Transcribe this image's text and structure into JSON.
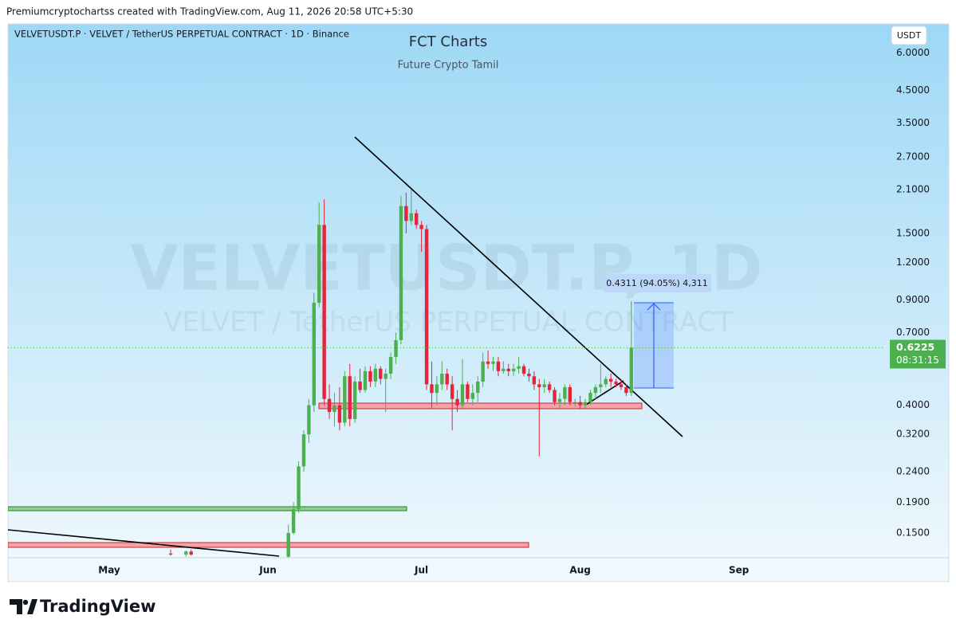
{
  "header": {
    "byline": "Premiumcryptochartss created with TradingView.com, Aug 11, 2026 20:58 UTC+5:30"
  },
  "footer": {
    "brand": "TradingView"
  },
  "chart_data": {
    "type": "candlestick",
    "symbol_info": "VELVETUSDT.P · VELVET / TetherUS PERPETUAL CONTRACT · 1D · Binance",
    "title": "FCT Charts",
    "subtitle": "Future Crypto Tamil",
    "watermark": "VELVETUSDT.P, 1D",
    "watermark_subtitle": "VELVET / TetherUS PERPETUAL CONTRACT",
    "currency": "USDT",
    "measurement": "0.4311 (94.05%) 4,311",
    "last_price": 0.6225,
    "countdown": "08:31:15",
    "up_color": "#4caf50",
    "down_color": "#e5233b",
    "log_scale": true,
    "grid": false,
    "ylim": [
      0.124,
      7.5
    ],
    "yticks": [
      {
        "value": 0.15,
        "label": "0.1500"
      },
      {
        "value": 0.19,
        "label": "0.1900"
      },
      {
        "value": 0.24,
        "label": "0.2400"
      },
      {
        "value": 0.32,
        "label": "0.3200"
      },
      {
        "value": 0.4,
        "label": "0.4000"
      },
      {
        "value": 0.7,
        "label": "0.7000"
      },
      {
        "value": 0.9,
        "label": "0.9000"
      },
      {
        "value": 1.2,
        "label": "1.2000"
      },
      {
        "value": 1.5,
        "label": "1.5000"
      },
      {
        "value": 2.1,
        "label": "2.1000"
      },
      {
        "value": 2.7,
        "label": "2.7000"
      },
      {
        "value": 3.5,
        "label": "3.5000"
      },
      {
        "value": 4.5,
        "label": "4.5000"
      },
      {
        "value": 6,
        "label": "6.0000"
      }
    ],
    "categories": [
      "May",
      null,
      null,
      null,
      null,
      null,
      null,
      null,
      null,
      null,
      null,
      null,
      null,
      null,
      null,
      null,
      null,
      null,
      null,
      null,
      null,
      null,
      null,
      null,
      null,
      null,
      null,
      null,
      null,
      null,
      null,
      "Jun",
      null,
      null,
      null,
      null,
      null,
      null,
      null,
      null,
      null,
      null,
      null,
      null,
      null,
      null,
      null,
      null,
      null,
      null,
      null,
      null,
      null,
      null,
      null,
      null,
      null,
      null,
      null,
      null,
      null,
      "Jul",
      null,
      null,
      null,
      null,
      null,
      null,
      null,
      null,
      null,
      null,
      null,
      null,
      null,
      null,
      null,
      null,
      null,
      null,
      null,
      null,
      null,
      null,
      null,
      null,
      null,
      null,
      null,
      null,
      null,
      null,
      "Aug",
      null,
      null,
      null,
      null,
      null,
      null,
      null,
      null,
      null,
      null,
      null,
      null,
      null,
      null,
      null,
      null,
      null,
      null,
      null,
      null,
      null,
      null,
      null,
      null,
      null,
      null,
      null,
      null,
      null,
      null,
      "Sep"
    ],
    "open": [
      null,
      null,
      null,
      null,
      null,
      null,
      null,
      null,
      null,
      null,
      null,
      null,
      0.128,
      null,
      null,
      0.127,
      0.13,
      null,
      null,
      null,
      null,
      null,
      null,
      null,
      null,
      null,
      null,
      null,
      null,
      null,
      null,
      null,
      null,
      null,
      null,
      0.125,
      0.15,
      0.18,
      0.25,
      0.32,
      0.4,
      0.88,
      1.6,
      0.42,
      0.38,
      0.4,
      0.35,
      0.5,
      0.36,
      0.48,
      0.45,
      0.52,
      0.48,
      0.53,
      0.49,
      0.51,
      0.58,
      0.66,
      1.85,
      1.65,
      1.75,
      1.6,
      1.55,
      0.47,
      0.44,
      0.47,
      0.51,
      0.47,
      0.42,
      0.4,
      0.47,
      0.42,
      0.44,
      0.48,
      0.56,
      0.55,
      0.56,
      0.52,
      0.53,
      0.52,
      0.53,
      0.54,
      0.51,
      0.5,
      0.47,
      0.46,
      0.47,
      0.45,
      0.41,
      0.42,
      0.46,
      0.41,
      0.41,
      0.4,
      0.41,
      0.44,
      0.46,
      0.47,
      0.49,
      0.48,
      0.47,
      0.46,
      0.44,
      null,
      null,
      null,
      null,
      null,
      null,
      null,
      null,
      null,
      null,
      null,
      null,
      null,
      null,
      null,
      null,
      null,
      null,
      null,
      null,
      null
    ],
    "high": [
      null,
      null,
      null,
      null,
      null,
      null,
      null,
      null,
      null,
      null,
      null,
      null,
      0.132,
      null,
      null,
      0.131,
      0.132,
      null,
      null,
      null,
      null,
      null,
      null,
      null,
      null,
      null,
      null,
      null,
      null,
      null,
      null,
      null,
      null,
      null,
      null,
      0.16,
      0.19,
      0.26,
      0.33,
      0.42,
      0.95,
      1.9,
      1.95,
      0.47,
      0.44,
      0.46,
      0.52,
      0.55,
      0.5,
      0.53,
      0.54,
      0.54,
      0.55,
      0.54,
      0.53,
      0.6,
      0.7,
      2.0,
      2.05,
      2.1,
      1.8,
      1.65,
      1.6,
      0.56,
      0.5,
      0.56,
      0.53,
      0.5,
      0.45,
      0.57,
      0.48,
      0.47,
      0.5,
      0.6,
      0.61,
      0.58,
      0.58,
      0.56,
      0.55,
      0.55,
      0.58,
      0.55,
      0.53,
      0.52,
      0.49,
      0.49,
      0.48,
      0.46,
      0.44,
      0.47,
      0.47,
      0.42,
      0.43,
      0.42,
      0.45,
      0.47,
      0.55,
      0.5,
      0.51,
      0.49,
      0.49,
      0.47,
      0.89,
      null,
      null,
      null,
      null,
      null,
      null,
      null,
      null,
      null,
      null,
      null,
      null,
      null,
      null,
      null,
      null,
      null,
      null,
      null,
      null,
      null
    ],
    "low": [
      null,
      null,
      null,
      null,
      null,
      null,
      null,
      null,
      null,
      null,
      null,
      null,
      0.126,
      null,
      null,
      0.125,
      0.126,
      null,
      null,
      null,
      null,
      null,
      null,
      null,
      null,
      null,
      null,
      null,
      null,
      null,
      null,
      null,
      null,
      null,
      null,
      0.123,
      0.148,
      0.175,
      0.24,
      0.3,
      0.38,
      0.85,
      0.4,
      0.36,
      0.34,
      0.33,
      0.34,
      0.34,
      0.35,
      0.44,
      0.44,
      0.46,
      0.46,
      0.47,
      0.38,
      0.49,
      0.55,
      0.64,
      1.5,
      1.6,
      1.55,
      1.3,
      0.45,
      0.39,
      0.4,
      0.45,
      0.45,
      0.33,
      0.38,
      0.39,
      0.41,
      0.4,
      0.41,
      0.46,
      0.53,
      0.52,
      0.5,
      0.51,
      0.5,
      0.5,
      0.51,
      0.5,
      0.48,
      0.45,
      0.27,
      0.44,
      0.44,
      0.4,
      0.39,
      0.4,
      0.4,
      0.395,
      0.39,
      0.39,
      0.4,
      0.42,
      0.44,
      0.46,
      0.46,
      0.46,
      0.45,
      0.43,
      0.43,
      null,
      null,
      null,
      null,
      null,
      null,
      null,
      null,
      null,
      null,
      null,
      null,
      null,
      null,
      null,
      null,
      null,
      null,
      null,
      null,
      null
    ],
    "close": [
      null,
      null,
      null,
      null,
      null,
      null,
      null,
      null,
      null,
      null,
      null,
      null,
      0.127,
      null,
      null,
      0.13,
      0.127,
      null,
      null,
      null,
      null,
      null,
      null,
      null,
      null,
      null,
      null,
      null,
      null,
      null,
      null,
      null,
      null,
      null,
      null,
      0.15,
      0.18,
      0.25,
      0.32,
      0.4,
      0.88,
      1.6,
      0.42,
      0.38,
      0.4,
      0.35,
      0.5,
      0.36,
      0.48,
      0.45,
      0.52,
      0.48,
      0.53,
      0.49,
      0.51,
      0.58,
      0.66,
      1.85,
      1.65,
      1.75,
      1.6,
      1.55,
      0.47,
      0.44,
      0.47,
      0.51,
      0.47,
      0.42,
      0.4,
      0.47,
      0.42,
      0.44,
      0.48,
      0.56,
      0.55,
      0.56,
      0.52,
      0.53,
      0.52,
      0.53,
      0.54,
      0.51,
      0.5,
      0.47,
      0.46,
      0.47,
      0.45,
      0.41,
      0.42,
      0.46,
      0.41,
      0.41,
      0.4,
      0.41,
      0.44,
      0.46,
      0.47,
      0.49,
      0.48,
      0.47,
      0.46,
      0.44,
      0.6225,
      null,
      null,
      null,
      null,
      null,
      null,
      null,
      null,
      null,
      null,
      null,
      null,
      null,
      null,
      null,
      null,
      null,
      null,
      null,
      null,
      null
    ]
  }
}
